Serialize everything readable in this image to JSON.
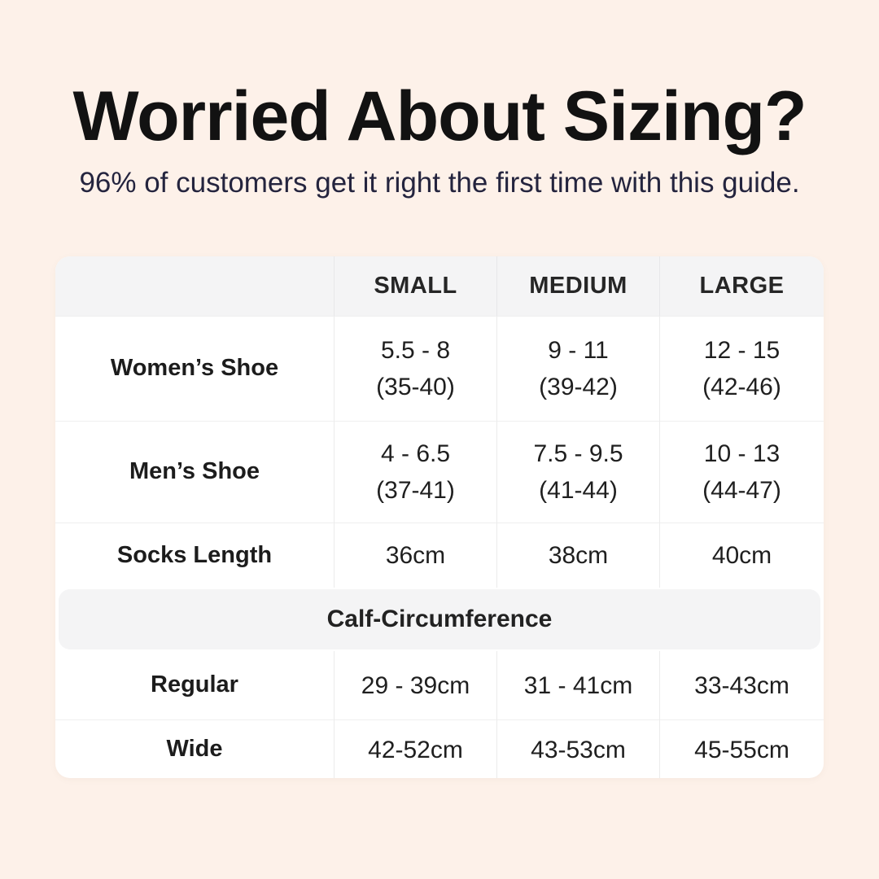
{
  "page": {
    "title": "Worried About Sizing?",
    "subtitle": "96% of customers get it right the first time with this guide.",
    "background_color": "#fdf1e9",
    "title_color": "#121212",
    "subtitle_color": "#24243e"
  },
  "table": {
    "columns": [
      "SMALL",
      "MEDIUM",
      "LARGE"
    ],
    "rows": [
      {
        "label": "Women’s Shoe",
        "values": [
          "5.5 - 8",
          "9 - 11",
          "12 - 15"
        ],
        "subvalues": [
          "(35-40)",
          "(39-42)",
          "(42-46)"
        ]
      },
      {
        "label": "Men’s Shoe",
        "values": [
          "4 - 6.5",
          "7.5 - 9.5",
          "10 - 13"
        ],
        "subvalues": [
          "(37-41)",
          "(41-44)",
          "(44-47)"
        ]
      },
      {
        "label": "Socks Length",
        "values": [
          "36cm",
          "38cm",
          "40cm"
        ]
      }
    ],
    "section_header": "Calf-Circumference",
    "calf_rows": [
      {
        "label": "Regular",
        "values": [
          "29 - 39cm",
          "31 - 41cm",
          "33-43cm"
        ]
      },
      {
        "label": "Wide",
        "values": [
          "42-52cm",
          "43-53cm",
          "45-55cm"
        ]
      }
    ],
    "colors": {
      "card": "#ffffff",
      "header_band": "#f4f4f5",
      "divider": "#ebebeb"
    }
  }
}
